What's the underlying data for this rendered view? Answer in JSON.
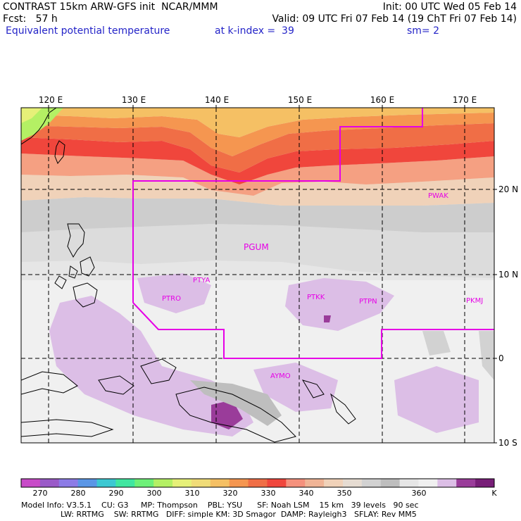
{
  "header": {
    "line1_left": "CONTRAST 15km ARW-GFS init  NCAR/MMM",
    "line1_right": "Init: 00 UTC Wed 05 Feb 14",
    "line2_fcst": "Fcst:   57 h",
    "line2_valid": "Valid: 09 UTC Fri 07 Feb 14 (19 ChT Fri 07 Feb 14)",
    "line3_field": "Equivalent potential temperature",
    "line3_level": "at k-index =  39",
    "line3_sm": "sm= 2"
  },
  "lon_labels": [
    "120 E",
    "130 E",
    "140 E",
    "150 E",
    "160 E",
    "170 E"
  ],
  "lat_labels": [
    "20 N",
    "10 N",
    "0",
    "10 S"
  ],
  "stations": [
    {
      "id": "PGUM"
    },
    {
      "id": "PWAK"
    },
    {
      "id": "PTYA"
    },
    {
      "id": "PTRO"
    },
    {
      "id": "PTKK"
    },
    {
      "id": "PTPN"
    },
    {
      "id": "PKMJ"
    },
    {
      "id": "AYMO"
    }
  ],
  "colorbar": {
    "unit": "K",
    "colors": [
      "#c84bc8",
      "#9a5ac8",
      "#8c7be6",
      "#5a96e6",
      "#3cc8d2",
      "#40e6a0",
      "#6ef078",
      "#b4f064",
      "#e6f078",
      "#f0dc78",
      "#f5c064",
      "#f59650",
      "#f06e46",
      "#f0463c",
      "#f5917d",
      "#f0b496",
      "#f0d2b9",
      "#e6dcd2",
      "#d2d2d2",
      "#bebebe",
      "#e6e6e6",
      "#f0f0f0",
      "#dcbee6",
      "#9a3c9a",
      "#781e78"
    ],
    "ticks": [
      "270",
      "280",
      "290",
      "300",
      "310",
      "320",
      "330",
      "340",
      "350",
      "360"
    ]
  },
  "footer": {
    "line1": "Model Info: V3.5.1    CU: G3     MP: Thompson    PBL: YSU      SF: Noah LSM    15 km   39 levels   90 sec",
    "line2": "                LW: RRTMG    SW: RRTMG   DIFF: simple KM: 3D Smagor  DAMP: Rayleigh3   SFLAY: Rev MM5"
  }
}
